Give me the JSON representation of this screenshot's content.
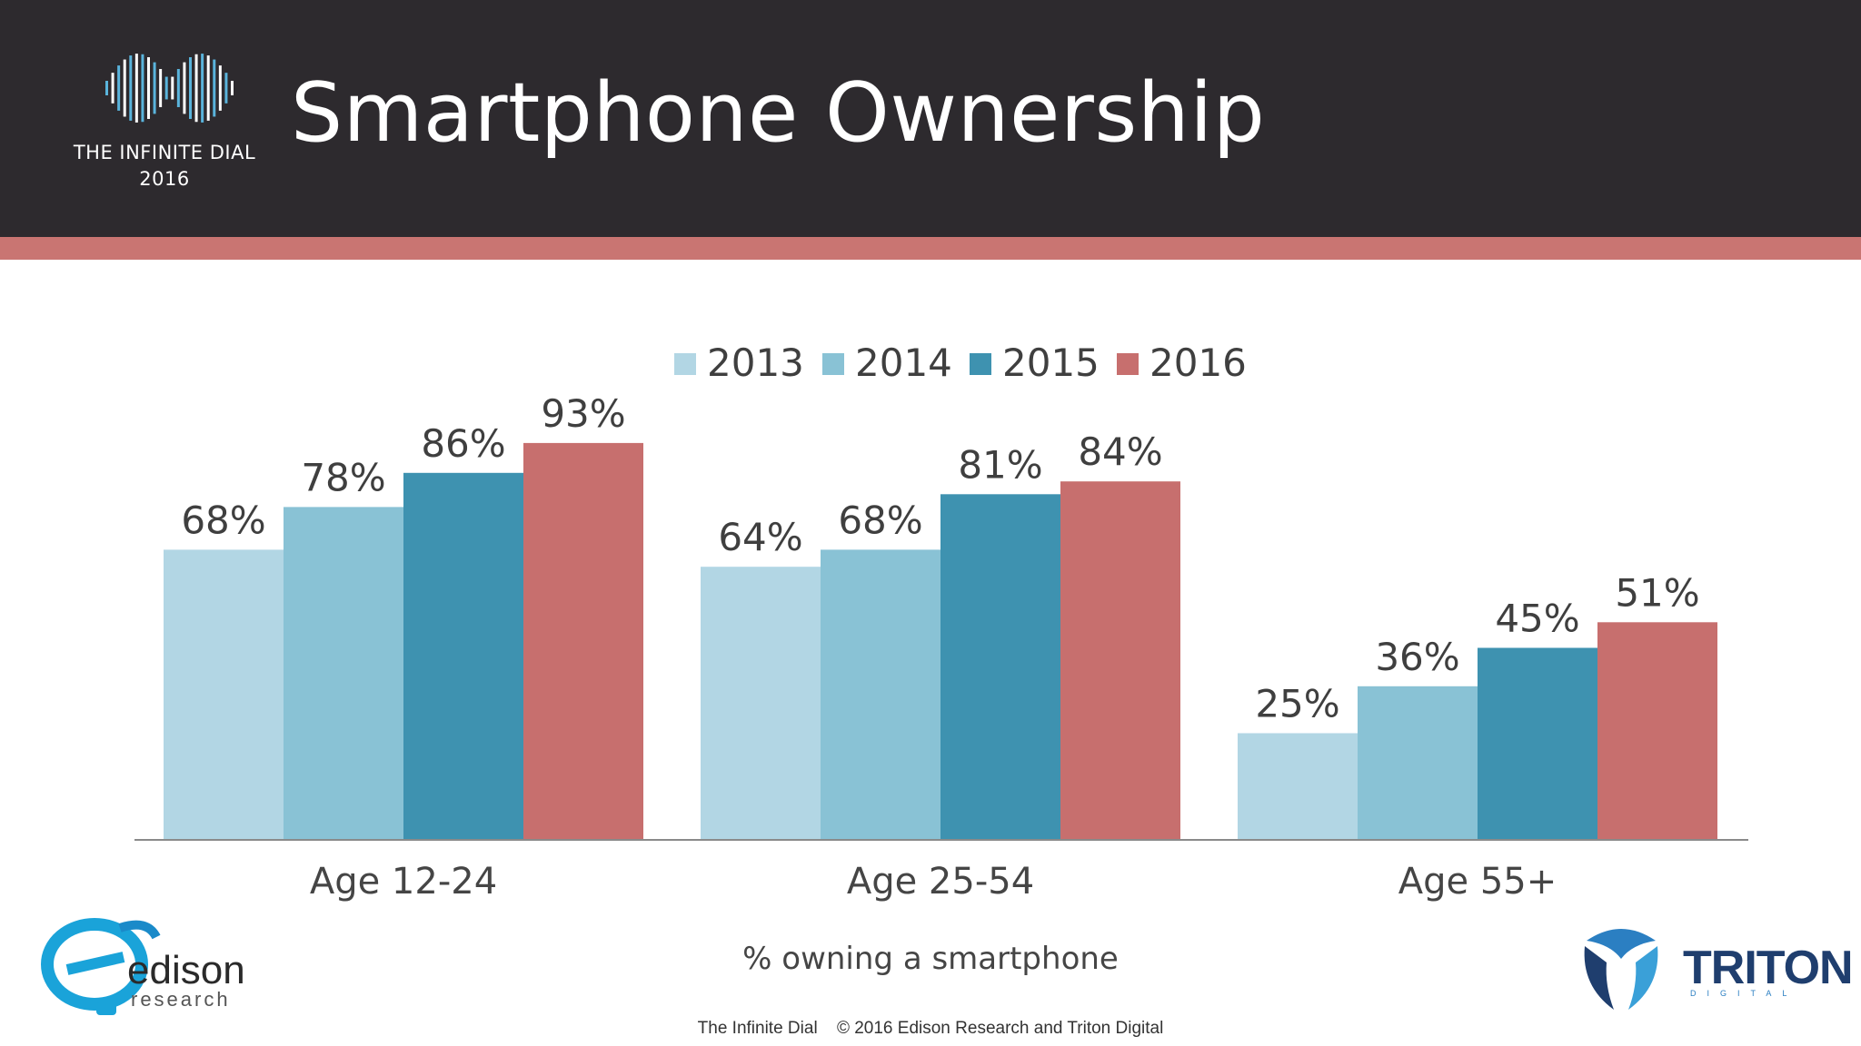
{
  "header": {
    "title": "Smartphone  Ownership",
    "logo_line1": "THE INFINITE DIAL",
    "logo_line2": "2016"
  },
  "colors": {
    "header_bg": "#2d2a2e",
    "accent": "#c97572",
    "series": [
      "#b2d6e4",
      "#89c2d5",
      "#3e92b0",
      "#c76f6e"
    ]
  },
  "chart_data": {
    "type": "bar",
    "title": "Smartphone  Ownership",
    "categories": [
      "Age  12-24",
      "Age  25-54",
      "Age  55+"
    ],
    "series": [
      {
        "name": "2013",
        "values": [
          68,
          64,
          25
        ]
      },
      {
        "name": "2014",
        "values": [
          78,
          68,
          36
        ]
      },
      {
        "name": "2015",
        "values": [
          86,
          81,
          45
        ]
      },
      {
        "name": "2016",
        "values": [
          93,
          84,
          51
        ]
      }
    ],
    "value_suffix": "%",
    "ylim": [
      0,
      100
    ],
    "grid": false,
    "legend_position": "top",
    "xlabel": "% owning a smartphone",
    "ylabel": ""
  },
  "footer": {
    "left": "The Infinite Dial",
    "right": "© 2016 Edison Research and Triton Digital"
  },
  "logos": {
    "edison_name": "edison",
    "edison_sub": "research",
    "triton_name": "TRITON",
    "triton_sub": "DIGITAL"
  }
}
